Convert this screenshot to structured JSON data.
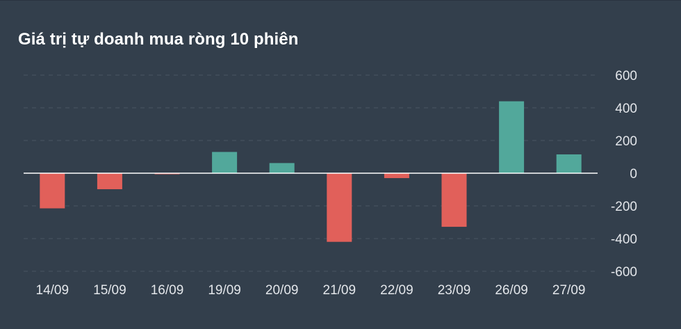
{
  "chart_data": {
    "type": "bar",
    "title": "Giá trị tự doanh mua ròng 10 phiên",
    "categories": [
      "14/09",
      "15/09",
      "16/09",
      "19/09",
      "20/09",
      "21/09",
      "22/09",
      "23/09",
      "26/09",
      "27/09"
    ],
    "values": [
      -215,
      -98,
      -5,
      130,
      62,
      -420,
      -30,
      -328,
      440,
      115
    ],
    "ylim": [
      -600,
      600
    ],
    "yticks": [
      600,
      400,
      200,
      0,
      -200,
      -400,
      -600
    ],
    "grid": true,
    "legend": "none",
    "colors": {
      "positive": "#52a89b",
      "negative": "#e1605a"
    }
  }
}
